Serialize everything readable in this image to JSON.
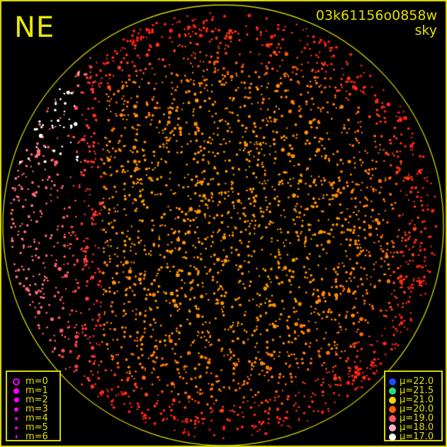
{
  "direction_label": "NE",
  "image_id": "03k61156o0858w",
  "image_type": "sky",
  "colors": {
    "frame": "#d8d800",
    "background": "#000000",
    "magnitude_marker": "#ff00ff"
  },
  "magnitude_legend": [
    {
      "label": "m=0",
      "marker": "open-circle"
    },
    {
      "label": "m=1",
      "marker": "filled-circle"
    },
    {
      "label": "m=2",
      "marker": "filled-circle"
    },
    {
      "label": "m=3",
      "marker": "filled-circle"
    },
    {
      "label": "m=4",
      "marker": "filled-circle"
    },
    {
      "label": "m=5",
      "marker": "filled-circle"
    },
    {
      "label": "m=6",
      "marker": "filled-circle"
    }
  ],
  "brightness_legend": [
    {
      "label": "μ=22.0",
      "color": "#1a4cff"
    },
    {
      "label": "μ=21.5",
      "color": "#22e07a"
    },
    {
      "label": "μ=21.0",
      "color": "#ffd400"
    },
    {
      "label": "μ=20.0",
      "color": "#ff5a10"
    },
    {
      "label": "μ=19.0",
      "color": "#ff5560"
    },
    {
      "label": "μ=18.0",
      "color": "#ffb4c4"
    },
    {
      "label": "μ=17.0",
      "color": "#ffffff"
    }
  ]
}
